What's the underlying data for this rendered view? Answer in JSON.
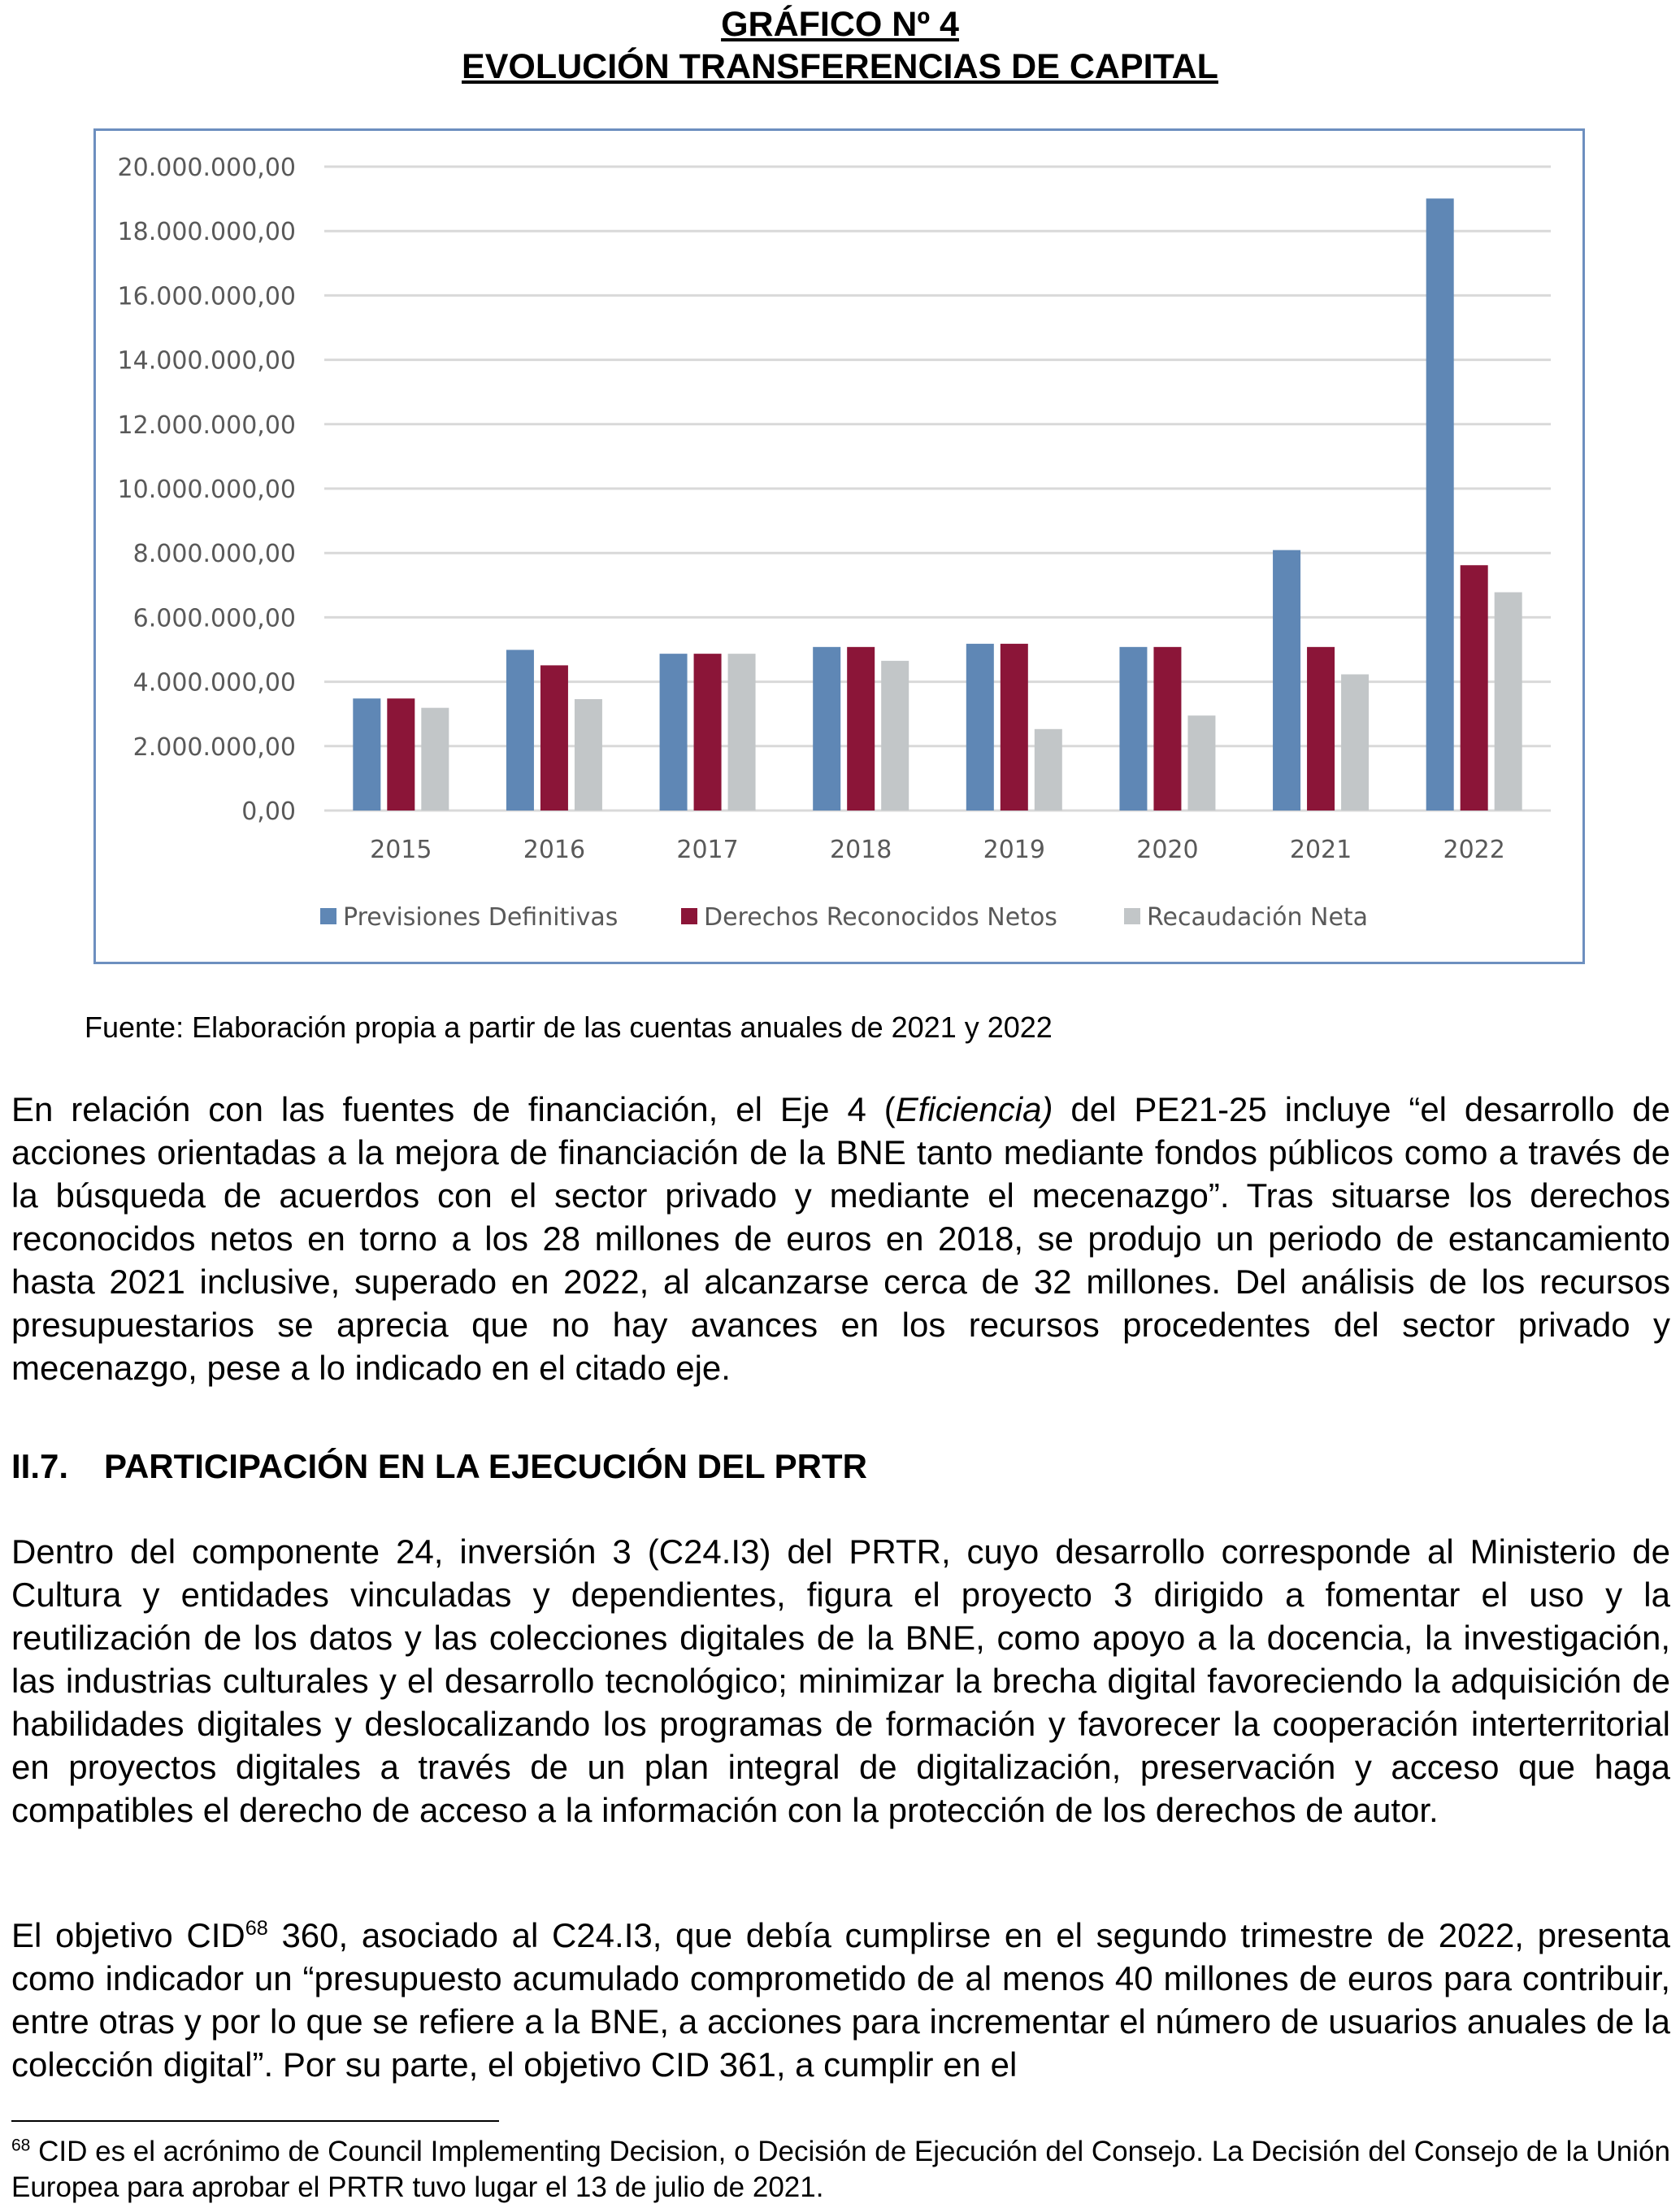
{
  "chart_data": {
    "type": "bar",
    "title": "GRÁFICO Nº 4",
    "subtitle": "EVOLUCIÓN TRANSFERENCIAS DE CAPITAL",
    "categories": [
      "2015",
      "2016",
      "2017",
      "2018",
      "2019",
      "2020",
      "2021",
      "2022"
    ],
    "series": [
      {
        "name": "Previsiones Definitivas",
        "color": "#5f87b5",
        "values": [
          3480000,
          4990000,
          4870000,
          5080000,
          5180000,
          5080000,
          8090000,
          19010000
        ]
      },
      {
        "name": "Derechos Reconocidos Netos",
        "color": "#8b1538",
        "values": [
          3480000,
          4510000,
          4870000,
          5080000,
          5180000,
          5080000,
          5080000,
          7620000
        ]
      },
      {
        "name": "Recaudación Neta",
        "color": "#c2c6c8",
        "values": [
          3190000,
          3460000,
          4870000,
          4650000,
          2530000,
          2950000,
          4230000,
          6780000
        ]
      }
    ],
    "ylim": [
      0,
      20000000
    ],
    "yticks": [
      0,
      2000000,
      4000000,
      6000000,
      8000000,
      10000000,
      12000000,
      14000000,
      16000000,
      18000000,
      20000000
    ],
    "ytick_labels": [
      "0,00",
      "2.000.000,00",
      "4.000.000,00",
      "6.000.000,00",
      "8.000.000,00",
      "10.000.000,00",
      "12.000.000,00",
      "14.000.000,00",
      "16.000.000,00",
      "18.000.000,00",
      "20.000.000,00"
    ],
    "grid": true,
    "legend": "bottom",
    "xlabel": "",
    "ylabel": ""
  },
  "source": "Fuente: Elaboración propia a partir de las cuentas anuales de 2021 y 2022",
  "paragraph1": {
    "before": "En relación con las fuentes de financiación, el Eje 4 (",
    "italic": "Eficiencia)",
    "after": " del PE21-25 incluye “el desarrollo de acciones orientadas a la mejora de financiación de la BNE tanto mediante fondos públicos como a través de la búsqueda de acuerdos con el sector privado y mediante el mecenazgo”. Tras situarse los derechos reconocidos netos en torno a los 28 millones de euros en 2018, se produjo un periodo de estancamiento hasta 2021 inclusive, superado en 2022, al alcanzarse cerca de 32 millones. Del análisis de los recursos presupuestarios se aprecia que no hay avances en los recursos procedentes del sector privado y mecenazgo, pese a lo indicado en el citado eje."
  },
  "heading": {
    "number": "II.7.",
    "text": "PARTICIPACIÓN EN LA EJECUCIÓN DEL PRTR"
  },
  "paragraph2": "Dentro del componente 24, inversión 3 (C24.I3) del PRTR, cuyo desarrollo corresponde al Ministerio de Cultura y entidades vinculadas y dependientes, figura el proyecto 3 dirigido a fomentar el uso y la reutilización de los datos y las colecciones digitales de la BNE, como apoyo a la docencia, la investigación, las industrias culturales y el desarrollo tecnológico; minimizar la brecha digital favoreciendo la adquisición de habilidades digitales y deslocalizando los programas de formación y favorecer la cooperación interterritorial en proyectos digitales a través de un plan integral de digitalización, preservación y acceso que haga compatibles el derecho de acceso a la información con la protección de los derechos de autor.",
  "paragraph3": {
    "before": "El objetivo CID",
    "sup": "68",
    "after": " 360, asociado al C24.I3, que debía cumplirse en el segundo trimestre de 2022, presenta como indicador un “presupuesto acumulado comprometido de al menos 40 millones de euros para contribuir, entre otras y por lo que se refiere a la BNE, a acciones para incrementar el número de usuarios anuales de la colección digital”. Por su parte, el objetivo CID 361, a cumplir en el"
  },
  "footnote": {
    "number": "68",
    "text": " CID es el acrónimo de Council Implementing Decision, o Decisión de Ejecución del Consejo. La Decisión del Consejo de la Unión Europea para aprobar el PRTR tuvo lugar el 13 de julio de 2021."
  }
}
